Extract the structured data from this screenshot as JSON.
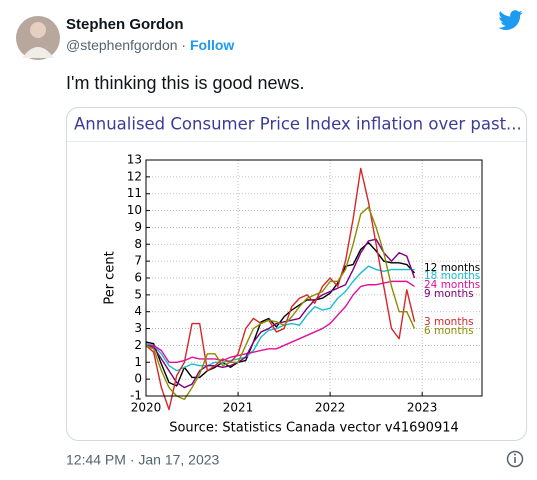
{
  "tweet": {
    "author": "Stephen Gordon",
    "handle": "@stephenfgordon",
    "separator": "·",
    "follow": "Follow",
    "text": "I'm thinking this is good news.",
    "timestamp": "12:44 PM · Jan 17, 2023"
  },
  "card": {
    "title": "Annualised Consumer Price Index inflation over past..."
  },
  "chart_data": {
    "type": "line",
    "ylabel": "Per cent",
    "source": "Source: Statistics Canada vector v41690914",
    "x": [
      2020,
      2020.083,
      2020.167,
      2020.25,
      2020.333,
      2020.417,
      2020.5,
      2020.583,
      2020.667,
      2020.75,
      2020.833,
      2020.917,
      2021,
      2021.083,
      2021.167,
      2021.25,
      2021.333,
      2021.417,
      2021.5,
      2021.583,
      2021.667,
      2021.75,
      2021.833,
      2021.917,
      2022,
      2022.083,
      2022.167,
      2022.25,
      2022.333,
      2022.417,
      2022.5,
      2022.583,
      2022.667,
      2022.75,
      2022.833,
      2022.917
    ],
    "xlim": [
      2020,
      2023.65
    ],
    "xticks": [
      2020,
      2021,
      2022,
      2023
    ],
    "ylim": [
      -1,
      13
    ],
    "yticks": [
      -1,
      0,
      1,
      2,
      3,
      4,
      5,
      6,
      7,
      8,
      9,
      10,
      11,
      12,
      13
    ],
    "grid": true,
    "series": [
      {
        "name": "12 months",
        "color": "#000000",
        "values": [
          2.2,
          2.1,
          0.9,
          -0.2,
          -0.4,
          0.7,
          0.1,
          0.1,
          0.5,
          0.7,
          1.0,
          0.7,
          1.0,
          1.1,
          2.2,
          3.4,
          3.6,
          3.1,
          3.7,
          4.1,
          4.4,
          4.7,
          4.7,
          4.8,
          5.1,
          5.7,
          6.7,
          6.8,
          7.7,
          8.1,
          7.6,
          7.0,
          6.9,
          6.9,
          6.8,
          6.3
        ]
      },
      {
        "name": "18 months",
        "color": "#17becf",
        "values": [
          2.1,
          2.0,
          1.5,
          0.8,
          0.5,
          0.7,
          0.9,
          0.8,
          0.8,
          1.0,
          1.0,
          1.1,
          1.2,
          1.3,
          1.7,
          2.5,
          2.9,
          3.0,
          3.2,
          3.3,
          3.2,
          3.8,
          4.3,
          4.1,
          4.2,
          4.8,
          5.2,
          5.8,
          6.3,
          6.7,
          6.5,
          6.4,
          6.5,
          6.5,
          6.5,
          6.5
        ]
      },
      {
        "name": "24 months",
        "color": "#e0109a",
        "values": [
          2.0,
          2.0,
          1.7,
          1.0,
          1.0,
          1.1,
          1.3,
          1.2,
          1.2,
          1.2,
          1.1,
          1.3,
          1.4,
          1.5,
          1.6,
          1.7,
          1.8,
          1.8,
          2.0,
          2.2,
          2.4,
          2.6,
          2.8,
          3.0,
          3.3,
          3.8,
          4.3,
          5.0,
          5.5,
          5.6,
          5.6,
          5.7,
          5.8,
          5.8,
          5.8,
          5.5
        ]
      },
      {
        "name": "9 months",
        "color": "#800080",
        "values": [
          2.0,
          1.9,
          1.2,
          0.5,
          -0.2,
          -0.5,
          -0.3,
          0.5,
          0.8,
          0.8,
          0.7,
          0.8,
          1.0,
          1.3,
          2.2,
          2.8,
          3.0,
          3.3,
          3.4,
          3.5,
          3.6,
          4.2,
          4.7,
          5.0,
          5.2,
          5.4,
          5.6,
          6.5,
          7.5,
          8.2,
          8.3,
          7.5,
          7.0,
          7.5,
          7.3,
          6.0
        ]
      },
      {
        "name": "3 months",
        "color": "#d62728",
        "values": [
          2.0,
          1.6,
          -0.5,
          -1.8,
          0.2,
          1.0,
          3.3,
          3.3,
          0.5,
          0.8,
          1.2,
          1.0,
          1.5,
          3.0,
          3.6,
          3.3,
          3.5,
          2.8,
          3.0,
          4.3,
          4.8,
          5.0,
          4.5,
          5.5,
          6.0,
          5.5,
          7.0,
          9.5,
          12.5,
          10.5,
          8.0,
          5.5,
          3.0,
          2.4,
          5.3,
          3.4
        ]
      },
      {
        "name": "6 months",
        "color": "#8c8c00",
        "values": [
          2.0,
          1.8,
          0.5,
          -0.5,
          -1.0,
          -1.2,
          -0.5,
          0.3,
          1.5,
          1.5,
          0.8,
          1.0,
          1.0,
          2.0,
          3.0,
          3.3,
          3.5,
          3.4,
          3.2,
          3.7,
          4.3,
          4.8,
          5.0,
          5.2,
          5.8,
          5.8,
          6.5,
          8.0,
          9.8,
          10.2,
          9.0,
          7.5,
          5.5,
          4.0,
          4.0,
          3.0
        ]
      }
    ]
  }
}
